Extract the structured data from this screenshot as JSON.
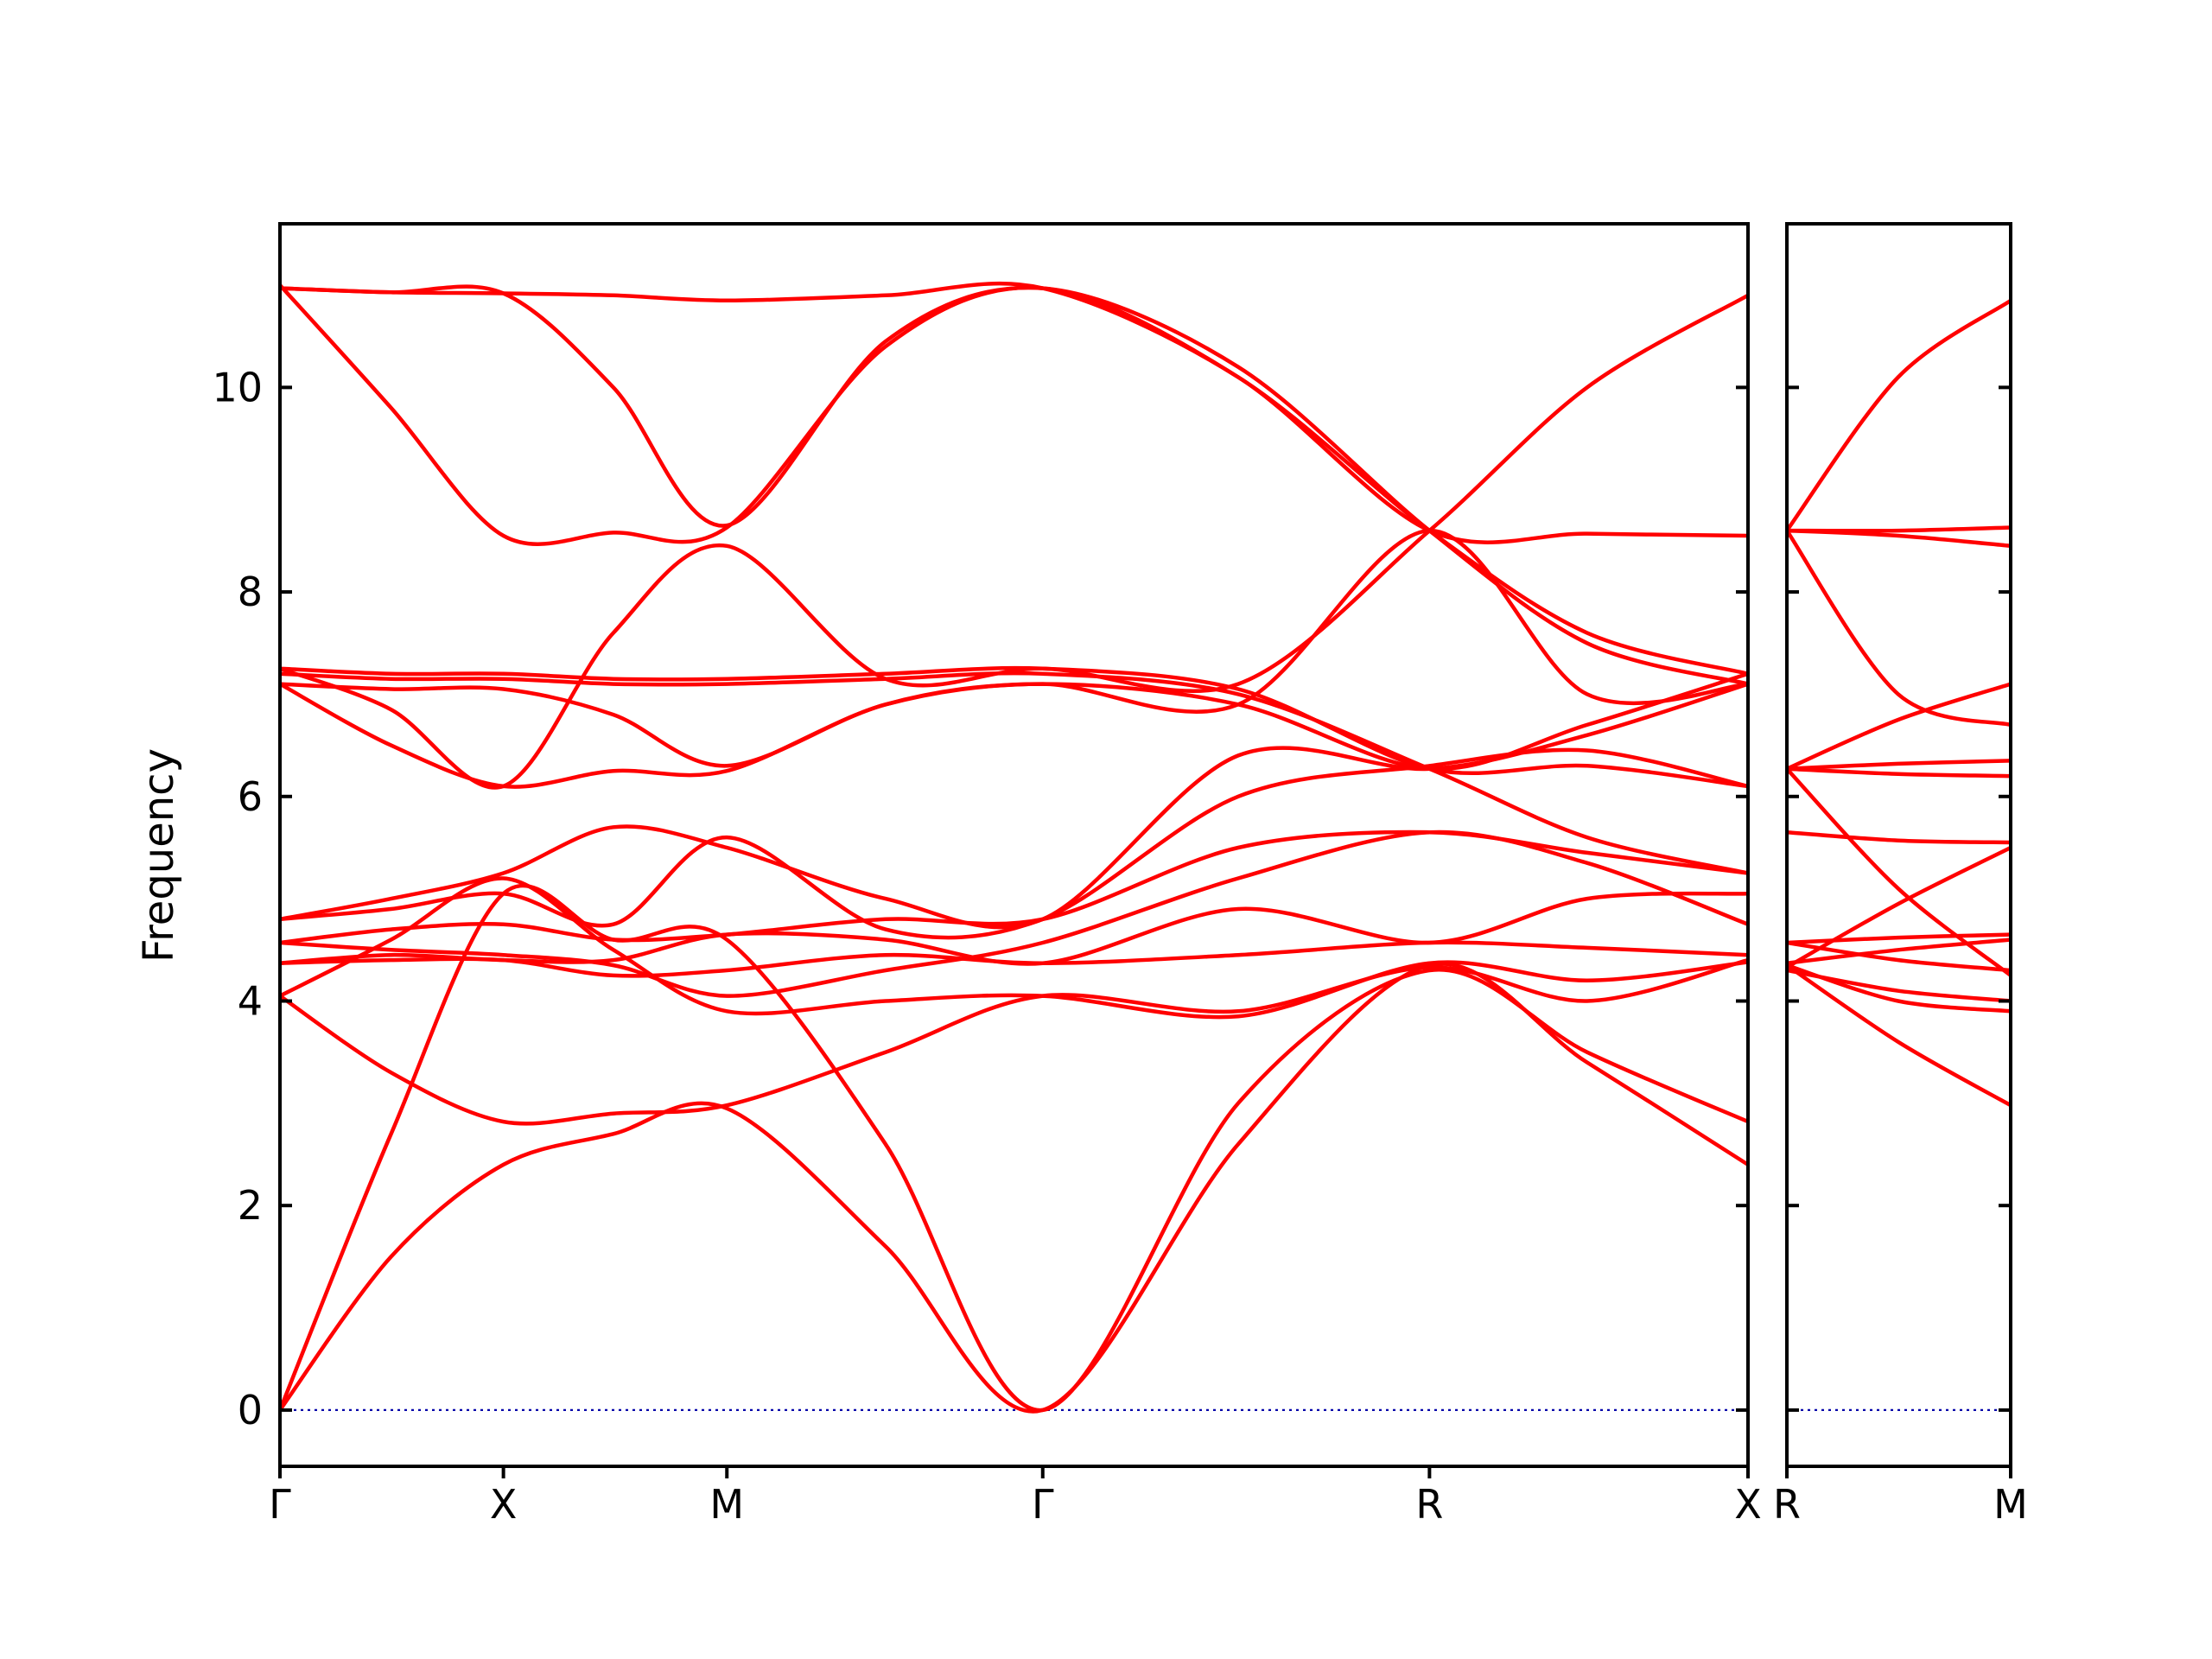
{
  "chart_data": {
    "type": "line",
    "title": "",
    "ylabel": "Frequency",
    "ylim": [
      -0.55,
      11.6
    ],
    "yticks": [
      0,
      2,
      4,
      6,
      8,
      10
    ],
    "ytick_labels": [
      "0",
      "2",
      "4",
      "6",
      "8",
      "10"
    ],
    "grid": false,
    "legend": "none",
    "colors": {
      "bands": "#ff0000",
      "zero_line": "#0000aa",
      "axes": "#000000"
    },
    "panels": [
      {
        "xlim": [
          0,
          3.83
        ],
        "kpoints": [
          {
            "label": "Γ",
            "x": 0
          },
          {
            "label": "X",
            "x": 0.583
          },
          {
            "label": "M",
            "x": 1.166
          },
          {
            "label": "Γ",
            "x": 1.99
          },
          {
            "label": "R",
            "x": 2.999
          },
          {
            "label": "X",
            "x": 3.83
          }
        ],
        "series": [
          {
            "x": [
              0,
              0.29,
              0.583,
              0.87,
              1.166,
              1.58,
              1.99,
              2.5,
              2.999,
              3.41,
              3.83
            ],
            "y": [
              0,
              1.5,
              2.4,
              2.7,
              2.95,
              1.6,
              0,
              2.6,
              4.35,
              3.4,
              2.4
            ]
          },
          {
            "x": [
              0,
              0.29,
              0.583,
              0.87,
              1.166,
              1.58,
              1.99,
              2.5,
              2.999,
              3.41,
              3.83
            ],
            "y": [
              0,
              2.7,
              5.05,
              4.6,
              4.6,
              2.6,
              0,
              3.0,
              4.3,
              3.5,
              2.82
            ]
          },
          {
            "x": [
              0,
              0.29,
              0.583,
              0.87,
              1.166,
              1.58,
              1.99,
              2.5,
              2.999,
              3.41,
              3.83
            ],
            "y": [
              4.05,
              3.3,
              2.82,
              2.9,
              2.98,
              3.5,
              4.05,
              3.9,
              4.33,
              4.0,
              4.4
            ]
          },
          {
            "x": [
              0,
              0.29,
              0.583,
              0.87,
              1.166,
              1.58,
              1.99,
              2.5,
              2.999,
              3.41,
              3.83
            ],
            "y": [
              4.05,
              4.6,
              5.2,
              4.5,
              3.9,
              4.0,
              4.05,
              3.85,
              4.37,
              4.2,
              4.38
            ]
          },
          {
            "x": [
              0,
              0.29,
              0.583,
              0.87,
              1.166,
              1.58,
              1.99,
              2.5,
              2.999,
              3.41,
              3.83
            ],
            "y": [
              4.37,
              4.4,
              4.4,
              4.25,
              4.3,
              4.45,
              4.37,
              4.45,
              4.57,
              4.52,
              4.45
            ]
          },
          {
            "x": [
              0,
              0.29,
              0.583,
              0.87,
              1.166,
              1.58,
              1.99,
              2.5,
              2.999,
              3.41,
              3.83
            ],
            "y": [
              4.37,
              4.45,
              4.4,
              4.4,
              4.65,
              4.6,
              4.37,
              4.9,
              4.57,
              5.0,
              5.05
            ]
          },
          {
            "x": [
              0,
              0.29,
              0.583,
              0.87,
              1.166,
              1.58,
              1.99,
              2.5,
              2.999,
              3.41,
              3.83
            ],
            "y": [
              4.57,
              4.5,
              4.45,
              4.35,
              4.05,
              4.3,
              4.57,
              5.2,
              5.65,
              5.35,
              4.75
            ]
          },
          {
            "x": [
              0,
              0.29,
              0.583,
              0.87,
              1.166,
              1.58,
              1.99,
              2.5,
              2.999,
              3.41,
              3.83
            ],
            "y": [
              4.57,
              4.7,
              4.75,
              4.6,
              4.65,
              4.8,
              4.8,
              5.5,
              5.65,
              5.45,
              5.25
            ]
          },
          {
            "x": [
              0,
              0.29,
              0.583,
              0.87,
              1.166,
              1.58,
              1.99,
              2.5,
              2.999,
              3.41,
              3.83
            ],
            "y": [
              4.8,
              4.9,
              5.05,
              4.75,
              5.6,
              4.7,
              4.8,
              6.0,
              6.3,
              6.45,
              6.1
            ]
          },
          {
            "x": [
              0,
              0.29,
              0.583,
              0.87,
              1.166,
              1.58,
              1.99,
              2.5,
              2.999,
              3.41,
              3.83
            ],
            "y": [
              4.8,
              5.0,
              5.25,
              5.7,
              5.5,
              5.0,
              4.8,
              6.4,
              6.27,
              6.6,
              7.1
            ]
          },
          {
            "x": [
              0,
              0.29,
              0.583,
              0.87,
              1.166,
              1.58,
              1.99,
              2.5,
              2.999,
              3.41,
              3.83
            ],
            "y": [
              7.1,
              6.5,
              6.1,
              6.25,
              6.25,
              6.9,
              7.1,
              6.9,
              6.27,
              6.7,
              7.2
            ]
          },
          {
            "x": [
              0,
              0.29,
              0.583,
              0.87,
              1.166,
              1.58,
              1.99,
              2.5,
              2.999,
              3.41,
              3.83
            ],
            "y": [
              7.1,
              7.05,
              7.05,
              6.8,
              6.3,
              6.9,
              7.1,
              6.9,
              8.6,
              7.0,
              7.1
            ]
          },
          {
            "x": [
              0,
              0.29,
              0.583,
              0.87,
              1.166,
              1.58,
              1.99,
              2.5,
              2.999,
              3.41,
              3.83
            ],
            "y": [
              7.25,
              6.85,
              6.1,
              7.6,
              8.45,
              7.15,
              7.25,
              7.1,
              8.6,
              10.0,
              10.9
            ]
          },
          {
            "x": [
              0,
              0.29,
              0.583,
              0.87,
              1.166,
              1.58,
              1.99,
              2.5,
              2.999,
              3.41,
              3.83
            ],
            "y": [
              7.25,
              7.2,
              7.2,
              7.15,
              7.15,
              7.2,
              7.25,
              7.05,
              6.27,
              6.3,
              6.1
            ]
          },
          {
            "x": [
              0,
              0.29,
              0.583,
              0.87,
              1.166,
              1.58,
              1.99,
              2.5,
              2.999,
              3.41,
              3.83
            ],
            "y": [
              7.2,
              7.15,
              7.15,
              7.1,
              7.1,
              7.15,
              7.2,
              7.0,
              6.27,
              5.6,
              5.25
            ]
          },
          {
            "x": [
              0,
              0.29,
              0.583,
              0.87,
              1.166,
              1.58,
              1.99,
              2.5,
              2.999,
              3.41,
              3.83
            ],
            "y": [
              11.0,
              9.8,
              8.55,
              8.58,
              8.63,
              10.4,
              10.97,
              10.1,
              8.6,
              8.57,
              8.55
            ]
          },
          {
            "x": [
              0,
              0.29,
              0.583,
              0.87,
              1.166,
              1.58,
              1.99,
              2.5,
              2.999,
              3.41,
              3.83
            ],
            "y": [
              10.97,
              10.93,
              10.92,
              10.9,
              10.85,
              10.9,
              10.97,
              10.1,
              8.6,
              7.6,
              7.2
            ]
          },
          {
            "x": [
              0,
              0.29,
              0.583,
              0.87,
              1.166,
              1.58,
              1.99,
              2.5,
              2.999,
              3.41,
              3.83
            ],
            "y": [
              10.97,
              10.93,
              10.92,
              10.0,
              8.65,
              10.45,
              10.97,
              10.2,
              8.6,
              7.5,
              7.1
            ]
          }
        ]
      },
      {
        "xlim": [
          0,
          0.583
        ],
        "kpoints": [
          {
            "label": "R",
            "x": 0
          },
          {
            "label": "M",
            "x": 0.583
          }
        ],
        "series": [
          {
            "x": [
              0,
              0.29,
              0.583
            ],
            "y": [
              4.35,
              3.6,
              2.98
            ]
          },
          {
            "x": [
              0,
              0.29,
              0.583
            ],
            "y": [
              4.35,
              4.0,
              3.9
            ]
          },
          {
            "x": [
              0,
              0.29,
              0.583
            ],
            "y": [
              4.3,
              4.1,
              4.0
            ]
          },
          {
            "x": [
              0,
              0.29,
              0.583
            ],
            "y": [
              4.37,
              4.5,
              4.6
            ]
          },
          {
            "x": [
              0,
              0.29,
              0.583
            ],
            "y": [
              4.57,
              4.62,
              4.65
            ]
          },
          {
            "x": [
              0,
              0.29,
              0.583
            ],
            "y": [
              4.57,
              4.4,
              4.3
            ]
          },
          {
            "x": [
              0,
              0.29,
              0.583
            ],
            "y": [
              4.33,
              4.95,
              5.5
            ]
          },
          {
            "x": [
              0,
              0.29,
              0.583
            ],
            "y": [
              5.65,
              5.57,
              5.55
            ]
          },
          {
            "x": [
              0,
              0.29,
              0.583
            ],
            "y": [
              6.27,
              5.1,
              4.25
            ]
          },
          {
            "x": [
              0,
              0.29,
              0.583
            ],
            "y": [
              6.27,
              6.22,
              6.2
            ]
          },
          {
            "x": [
              0,
              0.29,
              0.583
            ],
            "y": [
              6.27,
              6.32,
              6.35
            ]
          },
          {
            "x": [
              0,
              0.29,
              0.583
            ],
            "y": [
              6.27,
              6.75,
              7.1
            ]
          },
          {
            "x": [
              0,
              0.29,
              0.583
            ],
            "y": [
              8.6,
              7.0,
              6.7
            ]
          },
          {
            "x": [
              0,
              0.29,
              0.583
            ],
            "y": [
              8.6,
              8.55,
              8.45
            ]
          },
          {
            "x": [
              0,
              0.29,
              0.583
            ],
            "y": [
              8.6,
              8.6,
              8.63
            ]
          },
          {
            "x": [
              0,
              0.29,
              0.583
            ],
            "y": [
              8.6,
              10.1,
              10.85
            ]
          }
        ]
      }
    ]
  }
}
